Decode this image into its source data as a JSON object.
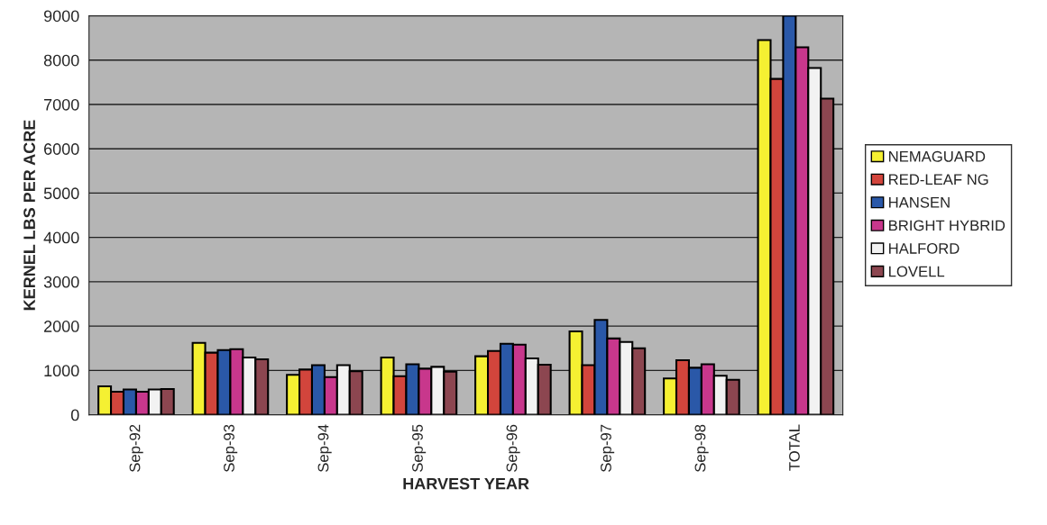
{
  "chart_data": {
    "type": "bar",
    "xlabel": "HARVEST YEAR",
    "ylabel": "KERNEL LBS PER ACRE",
    "categories": [
      "Sep-92",
      "Sep-93",
      "Sep-94",
      "Sep-95",
      "Sep-96",
      "Sep-97",
      "Sep-98",
      "TOTAL"
    ],
    "series": [
      {
        "name": "NEMAGUARD",
        "color": "#f5f032",
        "values": [
          640,
          1620,
          900,
          1290,
          1320,
          1880,
          820,
          8450
        ]
      },
      {
        "name": "RED-LEAF NG",
        "color": "#d2453c",
        "values": [
          520,
          1400,
          1020,
          870,
          1440,
          1120,
          1230,
          7575
        ]
      },
      {
        "name": "HANSEN",
        "color": "#2a58a8",
        "values": [
          570,
          1460,
          1120,
          1140,
          1600,
          2140,
          1060,
          9000
        ]
      },
      {
        "name": "BRIGHT HYBRID",
        "color": "#c8378c",
        "values": [
          520,
          1480,
          850,
          1040,
          1580,
          1720,
          1140,
          8290
        ]
      },
      {
        "name": "HALFORD",
        "color": "#f2f2f2",
        "values": [
          570,
          1290,
          1120,
          1080,
          1270,
          1640,
          880,
          7820
        ]
      },
      {
        "name": "LOVELL",
        "color": "#8c4650",
        "values": [
          580,
          1250,
          980,
          970,
          1130,
          1500,
          790,
          7130
        ]
      }
    ],
    "ylim": [
      0,
      9000
    ],
    "yticks": [
      0,
      1000,
      2000,
      3000,
      4000,
      5000,
      6000,
      7000,
      8000,
      9000
    ],
    "grid": "y",
    "legend": "right"
  }
}
